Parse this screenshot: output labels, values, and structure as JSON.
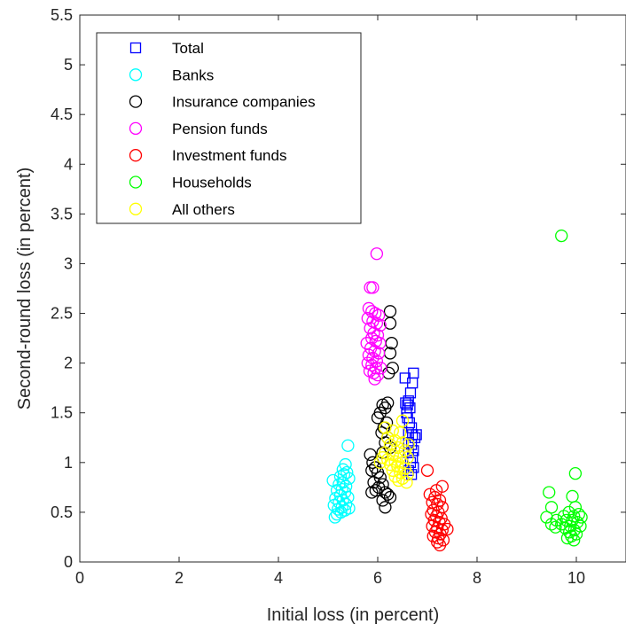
{
  "chart_data": {
    "type": "scatter",
    "title": "",
    "xlabel": "Initial loss (in percent)",
    "ylabel": "Second-round loss (in percent)",
    "xlim": [
      0,
      11
    ],
    "ylim": [
      0,
      5.5
    ],
    "xticks": [
      0,
      2,
      4,
      6,
      8,
      10
    ],
    "xtick_labels": [
      "0",
      "2",
      "4",
      "6",
      "8",
      "10"
    ],
    "yticks": [
      0,
      0.5,
      1,
      1.5,
      2,
      2.5,
      3,
      3.5,
      4,
      4.5,
      5,
      5.5
    ],
    "ytick_labels": [
      "0",
      "0.5",
      "1",
      "1.5",
      "2",
      "2.5",
      "3",
      "3.5",
      "4",
      "4.5",
      "5",
      "5.5"
    ],
    "grid": false,
    "legend_position": "top-left",
    "series": [
      {
        "name": "Total",
        "marker": "square",
        "color": "#0000ff",
        "points": [
          [
            6.55,
            1.85
          ],
          [
            6.72,
            1.9
          ],
          [
            6.7,
            1.8
          ],
          [
            6.66,
            1.7
          ],
          [
            6.62,
            1.62
          ],
          [
            6.6,
            1.58
          ],
          [
            6.65,
            1.55
          ],
          [
            6.58,
            1.5
          ],
          [
            6.6,
            1.45
          ],
          [
            6.64,
            1.4
          ],
          [
            6.68,
            1.35
          ],
          [
            6.62,
            1.3
          ],
          [
            6.7,
            1.28
          ],
          [
            6.75,
            1.25
          ],
          [
            6.62,
            1.2
          ],
          [
            6.68,
            1.18
          ],
          [
            6.72,
            1.12
          ],
          [
            6.62,
            1.1
          ],
          [
            6.7,
            1.05
          ],
          [
            6.66,
            1.0
          ],
          [
            6.72,
            0.95
          ],
          [
            6.62,
            0.92
          ],
          [
            6.68,
            0.88
          ],
          [
            6.56,
            1.6
          ],
          [
            6.78,
            1.28
          ]
        ]
      },
      {
        "name": "Banks",
        "marker": "circle",
        "color": "#00ffff",
        "points": [
          [
            5.4,
            1.17
          ],
          [
            5.35,
            0.98
          ],
          [
            5.3,
            0.93
          ],
          [
            5.38,
            0.9
          ],
          [
            5.25,
            0.86
          ],
          [
            5.42,
            0.84
          ],
          [
            5.1,
            0.82
          ],
          [
            5.3,
            0.8
          ],
          [
            5.22,
            0.78
          ],
          [
            5.36,
            0.76
          ],
          [
            5.28,
            0.73
          ],
          [
            5.18,
            0.72
          ],
          [
            5.34,
            0.7
          ],
          [
            5.25,
            0.67
          ],
          [
            5.4,
            0.65
          ],
          [
            5.15,
            0.64
          ],
          [
            5.3,
            0.62
          ],
          [
            5.22,
            0.6
          ],
          [
            5.36,
            0.58
          ],
          [
            5.12,
            0.57
          ],
          [
            5.28,
            0.55
          ],
          [
            5.2,
            0.53
          ],
          [
            5.34,
            0.52
          ],
          [
            5.26,
            0.5
          ],
          [
            5.18,
            0.48
          ],
          [
            5.14,
            0.45
          ],
          [
            5.42,
            0.54
          ],
          [
            5.32,
            0.88
          ]
        ]
      },
      {
        "name": "Insurance companies",
        "marker": "circle",
        "color": "#000000",
        "points": [
          [
            6.25,
            2.52
          ],
          [
            6.25,
            2.4
          ],
          [
            6.28,
            2.2
          ],
          [
            6.25,
            2.1
          ],
          [
            6.3,
            1.95
          ],
          [
            6.22,
            1.9
          ],
          [
            6.2,
            1.6
          ],
          [
            6.1,
            1.58
          ],
          [
            6.15,
            1.55
          ],
          [
            6.05,
            1.5
          ],
          [
            6.0,
            1.45
          ],
          [
            6.18,
            1.4
          ],
          [
            6.12,
            1.35
          ],
          [
            6.08,
            1.3
          ],
          [
            6.2,
            1.25
          ],
          [
            6.15,
            1.2
          ],
          [
            6.25,
            1.15
          ],
          [
            6.1,
            1.1
          ],
          [
            5.85,
            1.08
          ],
          [
            5.9,
            1.0
          ],
          [
            5.95,
            0.95
          ],
          [
            5.88,
            0.92
          ],
          [
            6.0,
            0.9
          ],
          [
            6.05,
            0.85
          ],
          [
            5.92,
            0.8
          ],
          [
            6.1,
            0.78
          ],
          [
            6.02,
            0.75
          ],
          [
            5.96,
            0.72
          ],
          [
            6.15,
            0.7
          ],
          [
            5.88,
            0.7
          ],
          [
            6.2,
            0.68
          ],
          [
            6.25,
            0.65
          ],
          [
            6.1,
            0.62
          ],
          [
            6.15,
            0.55
          ]
        ]
      },
      {
        "name": "Pension funds",
        "marker": "circle",
        "color": "#ff00ff",
        "points": [
          [
            5.98,
            3.1
          ],
          [
            5.85,
            2.76
          ],
          [
            5.9,
            2.76
          ],
          [
            5.82,
            2.55
          ],
          [
            5.88,
            2.52
          ],
          [
            5.95,
            2.5
          ],
          [
            6.02,
            2.48
          ],
          [
            5.8,
            2.45
          ],
          [
            5.9,
            2.42
          ],
          [
            5.98,
            2.4
          ],
          [
            6.05,
            2.38
          ],
          [
            5.85,
            2.35
          ],
          [
            5.92,
            2.3
          ],
          [
            6.0,
            2.28
          ],
          [
            5.88,
            2.25
          ],
          [
            5.96,
            2.22
          ],
          [
            6.04,
            2.2
          ],
          [
            5.78,
            2.2
          ],
          [
            5.86,
            2.15
          ],
          [
            5.94,
            2.12
          ],
          [
            6.02,
            2.1
          ],
          [
            5.82,
            2.08
          ],
          [
            5.9,
            2.05
          ],
          [
            5.98,
            2.02
          ],
          [
            5.8,
            2.0
          ],
          [
            5.88,
            1.98
          ],
          [
            5.96,
            1.95
          ],
          [
            6.06,
            1.95
          ],
          [
            5.84,
            1.92
          ],
          [
            5.92,
            1.9
          ],
          [
            6.0,
            1.88
          ],
          [
            5.94,
            1.84
          ]
        ]
      },
      {
        "name": "Investment funds",
        "marker": "circle",
        "color": "#ff0000",
        "points": [
          [
            7.0,
            0.92
          ],
          [
            7.3,
            0.76
          ],
          [
            7.18,
            0.72
          ],
          [
            7.05,
            0.68
          ],
          [
            7.15,
            0.65
          ],
          [
            7.25,
            0.62
          ],
          [
            7.1,
            0.6
          ],
          [
            7.2,
            0.58
          ],
          [
            7.3,
            0.55
          ],
          [
            7.12,
            0.52
          ],
          [
            7.22,
            0.5
          ],
          [
            7.08,
            0.48
          ],
          [
            7.18,
            0.46
          ],
          [
            7.28,
            0.44
          ],
          [
            7.14,
            0.42
          ],
          [
            7.24,
            0.4
          ],
          [
            7.34,
            0.38
          ],
          [
            7.1,
            0.36
          ],
          [
            7.2,
            0.34
          ],
          [
            7.3,
            0.32
          ],
          [
            7.4,
            0.33
          ],
          [
            7.16,
            0.3
          ],
          [
            7.26,
            0.28
          ],
          [
            7.12,
            0.26
          ],
          [
            7.22,
            0.24
          ],
          [
            7.32,
            0.22
          ],
          [
            7.2,
            0.2
          ],
          [
            7.25,
            0.17
          ]
        ]
      },
      {
        "name": "Households",
        "marker": "circle",
        "color": "#00ff00",
        "points": [
          [
            9.7,
            3.28
          ],
          [
            9.98,
            0.89
          ],
          [
            9.45,
            0.7
          ],
          [
            9.92,
            0.66
          ],
          [
            9.5,
            0.55
          ],
          [
            9.98,
            0.55
          ],
          [
            9.85,
            0.5
          ],
          [
            10.05,
            0.48
          ],
          [
            9.4,
            0.45
          ],
          [
            9.75,
            0.46
          ],
          [
            9.95,
            0.46
          ],
          [
            10.1,
            0.45
          ],
          [
            9.6,
            0.42
          ],
          [
            9.8,
            0.42
          ],
          [
            9.92,
            0.42
          ],
          [
            10.02,
            0.4
          ],
          [
            9.5,
            0.38
          ],
          [
            9.7,
            0.38
          ],
          [
            9.88,
            0.36
          ],
          [
            10.08,
            0.36
          ],
          [
            9.78,
            0.34
          ],
          [
            9.96,
            0.32
          ],
          [
            9.86,
            0.3
          ],
          [
            10.0,
            0.28
          ],
          [
            9.9,
            0.26
          ],
          [
            9.82,
            0.24
          ],
          [
            9.95,
            0.22
          ],
          [
            9.58,
            0.35
          ]
        ]
      },
      {
        "name": "All others",
        "marker": "circle",
        "color": "#ffff00",
        "points": [
          [
            6.5,
            1.42
          ],
          [
            6.15,
            1.35
          ],
          [
            6.3,
            1.32
          ],
          [
            6.45,
            1.3
          ],
          [
            6.2,
            1.25
          ],
          [
            6.35,
            1.22
          ],
          [
            6.5,
            1.2
          ],
          [
            6.25,
            1.18
          ],
          [
            6.4,
            1.15
          ],
          [
            6.55,
            1.12
          ],
          [
            6.15,
            1.1
          ],
          [
            6.3,
            1.08
          ],
          [
            6.45,
            1.06
          ],
          [
            6.6,
            1.05
          ],
          [
            6.2,
            1.03
          ],
          [
            6.35,
            1.01
          ],
          [
            6.5,
            1.0
          ],
          [
            6.25,
            0.98
          ],
          [
            6.4,
            0.96
          ],
          [
            6.55,
            0.94
          ],
          [
            6.3,
            0.92
          ],
          [
            6.45,
            0.9
          ],
          [
            6.6,
            0.88
          ],
          [
            6.35,
            0.86
          ],
          [
            6.5,
            0.84
          ],
          [
            6.42,
            0.82
          ],
          [
            6.58,
            0.8
          ],
          [
            6.1,
            1.05
          ],
          [
            6.05,
            1.0
          ],
          [
            6.62,
            1.18
          ]
        ]
      }
    ]
  }
}
